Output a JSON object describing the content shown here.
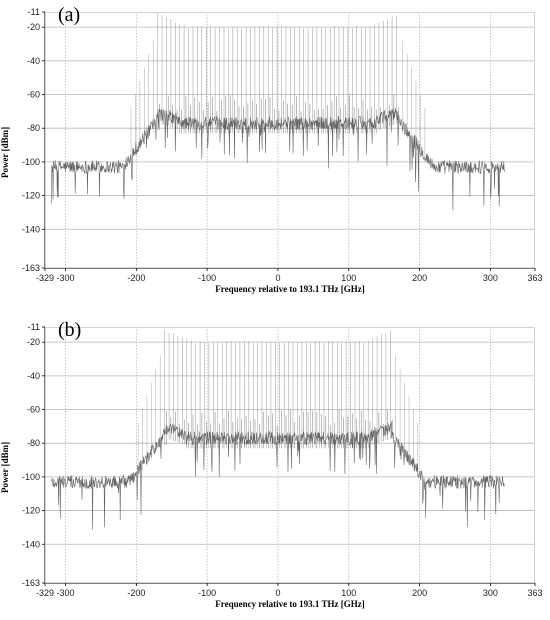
{
  "chart_data": [
    {
      "type": "line",
      "panel_label": "(a)",
      "xlabel": "Frequency relative to 193.1 THz [GHz]",
      "ylabel": "Power [dBm]",
      "xlim": [
        -329,
        363
      ],
      "ylim": [
        -163,
        -11
      ],
      "xticks": [
        -329,
        -300,
        -200,
        -100,
        0,
        100,
        200,
        300,
        363
      ],
      "yticks": [
        -11,
        -20,
        -40,
        -60,
        -80,
        -100,
        -120,
        -140,
        -163
      ],
      "grid": true,
      "x_data_range": [
        -320,
        320
      ],
      "noise_floor_dbm": -103,
      "shoulder_dbm": -75,
      "channel_band_ghz": [
        -170,
        170
      ],
      "channel_spacing_ghz": 6.25,
      "channel_peak_dbm": -20,
      "channel_edge_peak_dbm": -12
    },
    {
      "type": "line",
      "panel_label": "(b)",
      "xlabel": "Frequency relative to 193.1 THz [GHz]",
      "ylabel": "Power [dBm]",
      "xlim": [
        -329,
        363
      ],
      "ylim": [
        -163,
        -11
      ],
      "xticks": [
        -329,
        -300,
        -200,
        -100,
        0,
        100,
        200,
        300,
        363
      ],
      "yticks": [
        -11,
        -20,
        -40,
        -60,
        -80,
        -100,
        -120,
        -140,
        -163
      ],
      "grid": true,
      "x_data_range": [
        -320,
        320
      ],
      "noise_floor_dbm": -103,
      "shoulder_dbm": -75,
      "channel_band_ghz": [
        -160,
        160
      ],
      "channel_spacing_ghz": 6.25,
      "channel_peak_dbm": -20,
      "channel_edge_peak_dbm": -13
    }
  ],
  "colors": {
    "trace": "#555555",
    "grid": "#b8b8b8",
    "axis": "#000000"
  }
}
